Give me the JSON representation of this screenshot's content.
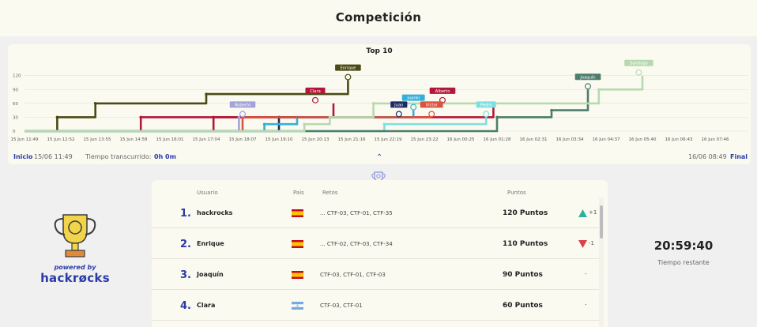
{
  "header": {
    "title": "Competición"
  },
  "chart_data": {
    "type": "line",
    "title": "Top 10",
    "xlabel": "",
    "ylabel": "",
    "ylim": [
      0,
      140
    ],
    "yticks": [
      0,
      30,
      60,
      90,
      120
    ],
    "xticks": [
      "15 Jun 11:49",
      "15 Jun 12:52",
      "15 Jun 13:55",
      "15 Jun 14:58",
      "15 Jun 16:01",
      "15 Jun 17:04",
      "15 Jun 18:07",
      "15 Jun 19:10",
      "15 Jun 20:13",
      "15 Jun 21:16",
      "15 Jun 22:19",
      "15 Jun 23:22",
      "16 Jun 00:25",
      "16 Jun 01:28",
      "16 Jun 02:31",
      "16 Jun 03:34",
      "16 Jun 04:37",
      "16 Jun 05:40",
      "16 Jun 06:43",
      "16 Jun 07:46"
    ],
    "grid": true,
    "series": [
      {
        "name": "Enrique",
        "color": "#4a4a16",
        "points": [
          [
            0,
            0
          ],
          [
            0.9,
            0
          ],
          [
            0.9,
            30
          ],
          [
            1.95,
            30
          ],
          [
            1.95,
            60
          ],
          [
            5.0,
            60
          ],
          [
            5.0,
            80
          ],
          [
            8.9,
            80
          ],
          [
            8.9,
            110
          ]
        ]
      },
      {
        "name": "Clara",
        "color": "#b3173a",
        "points": [
          [
            0,
            0
          ],
          [
            5.2,
            0
          ],
          [
            5.2,
            30
          ],
          [
            8.5,
            30
          ],
          [
            8.5,
            60
          ]
        ]
      },
      {
        "name": "Alberto",
        "color": "#b3173a",
        "points": [
          [
            0,
            0
          ],
          [
            3.2,
            0
          ],
          [
            3.2,
            30
          ],
          [
            12.9,
            30
          ],
          [
            12.9,
            60
          ]
        ]
      },
      {
        "name": "Juan",
        "color": "#1e2b66",
        "points": [
          [
            0,
            0
          ],
          [
            7.0,
            0
          ],
          [
            7.0,
            30
          ],
          [
            10.7,
            30
          ],
          [
            10.7,
            30
          ]
        ]
      },
      {
        "name": "Juanki",
        "color": "#33b0d8",
        "points": [
          [
            0,
            0
          ],
          [
            6.6,
            0
          ],
          [
            6.6,
            15
          ],
          [
            7.5,
            15
          ],
          [
            7.5,
            30
          ],
          [
            10.7,
            30
          ],
          [
            10.7,
            45
          ]
        ]
      },
      {
        "name": "Víctor",
        "color": "#d9533e",
        "points": [
          [
            0,
            0
          ],
          [
            6.0,
            0
          ],
          [
            6.0,
            30
          ],
          [
            11.2,
            30
          ],
          [
            11.2,
            30
          ]
        ]
      },
      {
        "name": "Roberto",
        "color": "#a3a3d8",
        "points": [
          [
            0,
            0
          ],
          [
            5.9,
            0
          ],
          [
            5.9,
            30
          ],
          [
            5.9,
            30
          ]
        ]
      },
      {
        "name": "Pedro",
        "color": "#7de0e0",
        "points": [
          [
            0,
            0
          ],
          [
            9.9,
            0
          ],
          [
            9.9,
            15
          ],
          [
            12.7,
            15
          ],
          [
            12.7,
            30
          ]
        ]
      },
      {
        "name": "Joaquín",
        "color": "#4d7d6b",
        "points": [
          [
            0,
            0
          ],
          [
            13.0,
            0
          ],
          [
            13.0,
            30
          ],
          [
            14.5,
            30
          ],
          [
            14.5,
            45
          ],
          [
            15.5,
            45
          ],
          [
            15.5,
            60
          ],
          [
            15.5,
            90
          ]
        ]
      },
      {
        "name": "Santiago",
        "color": "#b8d9b0",
        "points": [
          [
            0,
            0
          ],
          [
            7.7,
            0
          ],
          [
            7.7,
            15
          ],
          [
            8.4,
            15
          ],
          [
            8.4,
            30
          ],
          [
            9.6,
            30
          ],
          [
            9.6,
            60
          ],
          [
            15.8,
            60
          ],
          [
            15.8,
            90
          ],
          [
            17.0,
            90
          ],
          [
            17.0,
            120
          ]
        ]
      }
    ],
    "labels": [
      {
        "text": "Enrique",
        "x": 8.9,
        "y": 110,
        "color": "#4a4a16"
      },
      {
        "text": "Clara",
        "x": 8.0,
        "y": 60,
        "color": "#b3173a"
      },
      {
        "text": "Alberto",
        "x": 11.5,
        "y": 60,
        "color": "#b3173a"
      },
      {
        "text": "Juan",
        "x": 10.3,
        "y": 30,
        "color": "#1e2b66"
      },
      {
        "text": "Juanki",
        "x": 10.7,
        "y": 45,
        "color": "#33b0d8"
      },
      {
        "text": "Víctor",
        "x": 11.2,
        "y": 30,
        "color": "#d9533e"
      },
      {
        "text": "Roberto",
        "x": 6.0,
        "y": 30,
        "color": "#a3a3d8"
      },
      {
        "text": "Pedro",
        "x": 12.7,
        "y": 30,
        "color": "#7de0e0"
      },
      {
        "text": "Joaquín",
        "x": 15.5,
        "y": 90,
        "color": "#4d7d6b"
      },
      {
        "text": "Santiago",
        "x": 16.9,
        "y": 120,
        "color": "#b8d9b0"
      }
    ]
  },
  "timebar": {
    "start_label": "Inicio",
    "start_date": "15/06 11:49",
    "elapsed_label": "Tiempo transcurrido:",
    "elapsed_value": "0h 0m",
    "end_date": "16/06 08:49",
    "end_label": "Final"
  },
  "logo": {
    "powered": "powered by",
    "brand": "hackrøcks"
  },
  "table": {
    "headers": {
      "user": "Usuario",
      "country": "País",
      "challenges": "Retos",
      "points": "Puntos"
    },
    "rows": [
      {
        "rank": "1.",
        "user": "hackrocks",
        "flag": "es",
        "retos": "... CTF-03, CTF-01, CTF-35",
        "points": "120 Puntos",
        "trend": "+1",
        "trend_dir": "up"
      },
      {
        "rank": "2.",
        "user": "Enrique",
        "flag": "es",
        "retos": "... CTF-02, CTF-03, CTF-34",
        "points": "110 Puntos",
        "trend": "-1",
        "trend_dir": "down"
      },
      {
        "rank": "3.",
        "user": "Joaquín",
        "flag": "es",
        "retos": "CTF-03, CTF-01, CTF-03",
        "points": "90 Puntos",
        "trend": "-",
        "trend_dir": "none"
      },
      {
        "rank": "4.",
        "user": "Clara",
        "flag": "ar",
        "retos": "CTF-03, CTF-01",
        "points": "60 Puntos",
        "trend": "-",
        "trend_dir": "none"
      }
    ]
  },
  "countdown": {
    "time": "20:59:40",
    "label": "Tiempo restante"
  },
  "colors": {
    "accent": "#2a3aa8",
    "up": "#2bb39a",
    "down": "#d9414b"
  }
}
